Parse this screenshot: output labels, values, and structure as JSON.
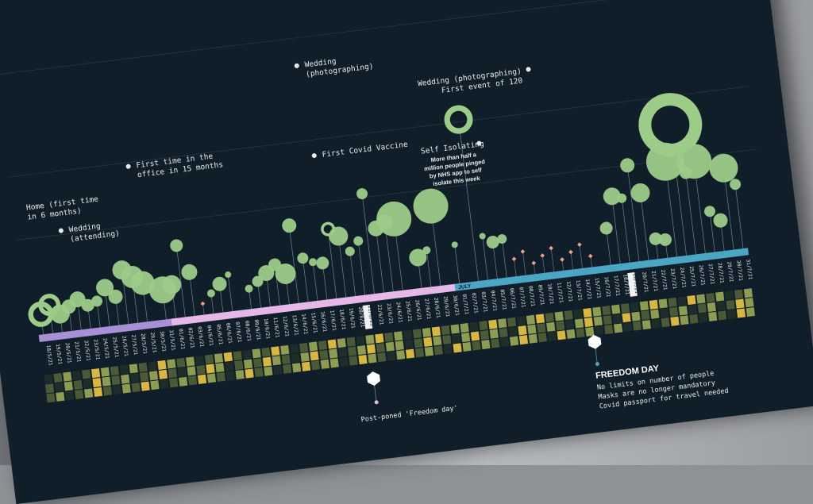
{
  "chart_data": {
    "type": "scatter",
    "title": "",
    "months": [
      {
        "label": "",
        "color": "#a98fd6"
      },
      {
        "label": "",
        "color": "#e6b8e8"
      },
      {
        "label": "JULY",
        "color": "#4ba6c3"
      }
    ],
    "dates": [
      "18/5/21",
      "19/5/21",
      "20/5/21",
      "21/5/21",
      "22/5/21",
      "23/5/21",
      "24/5/21",
      "25/5/21",
      "26/5/21",
      "27/5/21",
      "28/5/21",
      "29/5/21",
      "30/5/21",
      "31/5/21",
      "01/6/21",
      "02/6/21",
      "03/6/21",
      "04/6/21",
      "05/6/21",
      "06/6/21",
      "07/6/21",
      "08/6/21",
      "09/6/21",
      "10/6/21",
      "11/6/21",
      "12/6/21",
      "13/6/21",
      "14/6/21",
      "15/6/21",
      "16/6/21",
      "17/6/21",
      "18/6/21",
      "19/6/21",
      "20/6/21",
      "21/6/21",
      "22/6/21",
      "23/6/21",
      "24/6/21",
      "25/6/21",
      "26/6/21",
      "27/6/21",
      "28/6/21",
      "29/6/21",
      "30/6/21",
      "01/7/21",
      "02/7/21",
      "03/7/21",
      "04/7/21",
      "05/7/21",
      "06/7/21",
      "07/7/21",
      "08/7/21",
      "09/7/21",
      "10/7/21",
      "11/7/21",
      "12/7/21",
      "13/7/21",
      "14/7/21",
      "15/7/21",
      "16/7/21",
      "17/7/21",
      "18/7/21",
      "19/7/21",
      "20/7/21",
      "21/7/21",
      "22/7/21",
      "23/7/21",
      "24/7/21",
      "25/7/21",
      "26/7/21",
      "27/7/21",
      "28/7/21",
      "29/7/21",
      "30/7/21",
      "31/7/21"
    ],
    "highlighted_dates": [
      "21/6/21",
      "19/7/21"
    ],
    "bubbles": [
      {
        "d": 0,
        "h": 0.12,
        "r": 16,
        "ring": true
      },
      {
        "d": 1,
        "h": 0.2,
        "r": 14,
        "ring": true
      },
      {
        "d": 2,
        "h": 0.1,
        "r": 12
      },
      {
        "d": 3,
        "h": 0.16,
        "r": 9
      },
      {
        "d": 4,
        "h": 0.22,
        "r": 10
      },
      {
        "d": 5,
        "h": 0.15,
        "r": 8
      },
      {
        "d": 6,
        "h": 0.18,
        "r": 7
      },
      {
        "d": 7,
        "h": 0.3,
        "r": 11
      },
      {
        "d": 8,
        "h": 0.2,
        "r": 9
      },
      {
        "d": 9,
        "h": 0.45,
        "r": 12
      },
      {
        "d": 10,
        "h": 0.37,
        "r": 14
      },
      {
        "d": 11,
        "h": 0.3,
        "r": 15
      },
      {
        "d": 13,
        "h": 0.21,
        "r": 17
      },
      {
        "d": 14,
        "h": 0.25,
        "r": 12
      },
      {
        "d": 15,
        "h": 0.62,
        "r": 8
      },
      {
        "d": 16,
        "h": 0.35,
        "r": 10
      },
      {
        "d": 18,
        "h": 0.12,
        "r": 5
      },
      {
        "d": 19,
        "h": 0.2,
        "r": 9
      },
      {
        "d": 20,
        "h": 0.28,
        "r": 4
      },
      {
        "d": 22,
        "h": 0.12,
        "r": 5
      },
      {
        "d": 23,
        "h": 0.18,
        "r": 7
      },
      {
        "d": 24,
        "h": 0.25,
        "r": 10
      },
      {
        "d": 25,
        "h": 0.32,
        "r": 8
      },
      {
        "d": 26,
        "h": 0.22,
        "r": 13
      },
      {
        "d": 27,
        "h": 0.68,
        "r": 9
      },
      {
        "d": 28,
        "h": 0.35,
        "r": 7
      },
      {
        "d": 29,
        "h": 0.3,
        "r": 5
      },
      {
        "d": 30,
        "h": 0.28,
        "r": 8
      },
      {
        "d": 31,
        "h": 0.6,
        "r": 9,
        "ring": true
      },
      {
        "d": 32,
        "h": 0.52,
        "r": 12
      },
      {
        "d": 33,
        "h": 0.36,
        "r": 6
      },
      {
        "d": 34,
        "h": 0.45,
        "r": 6
      },
      {
        "d": 35,
        "h": 0.9,
        "r": 7
      },
      {
        "d": 36,
        "h": 0.55,
        "r": 10
      },
      {
        "d": 37,
        "h": 0.6,
        "r": 10
      },
      {
        "d": 38,
        "h": 0.62,
        "r": 22
      },
      {
        "d": 40,
        "h": 0.22,
        "r": 11
      },
      {
        "d": 41,
        "h": 0.28,
        "r": 5
      },
      {
        "d": 42,
        "h": 0.7,
        "r": 22
      },
      {
        "d": 44,
        "h": 0.3,
        "r": 4
      },
      {
        "d": 46,
        "h": 1.5,
        "r": 18,
        "ring": true
      },
      {
        "d": 47,
        "h": 0.35,
        "r": 4
      },
      {
        "d": 48,
        "h": 0.28,
        "r": 8
      },
      {
        "d": 49,
        "h": 0.3,
        "r": 6
      },
      {
        "d": 60,
        "h": 0.28,
        "r": 8
      },
      {
        "d": 61,
        "h": 0.58,
        "r": 11
      },
      {
        "d": 62,
        "h": 0.55,
        "r": 6
      },
      {
        "d": 63,
        "h": 0.86,
        "r": 9
      },
      {
        "d": 64,
        "h": 0.58,
        "r": 12
      },
      {
        "d": 65,
        "h": 0.12,
        "r": 8
      },
      {
        "d": 66,
        "h": 0.1,
        "r": 8
      },
      {
        "d": 67,
        "h": 0.85,
        "r": 24
      },
      {
        "d": 68,
        "h": 1.2,
        "r": 40,
        "ring": true
      },
      {
        "d": 69,
        "h": 0.72,
        "r": 8
      },
      {
        "d": 70,
        "h": 0.82,
        "r": 22
      },
      {
        "d": 71,
        "h": 0.32,
        "r": 7
      },
      {
        "d": 72,
        "h": 0.22,
        "r": 9
      },
      {
        "d": 73,
        "h": 0.72,
        "r": 18
      },
      {
        "d": 74,
        "h": 0.55,
        "r": 7
      }
    ],
    "small_markers": [
      {
        "d": 17
      },
      {
        "d": 50
      },
      {
        "d": 51
      },
      {
        "d": 52
      },
      {
        "d": 53
      },
      {
        "d": 54
      },
      {
        "d": 55
      },
      {
        "d": 56
      },
      {
        "d": 57
      },
      {
        "d": 58
      }
    ],
    "heatmap": {
      "rows": 3,
      "levels": [
        0,
        1,
        2,
        0,
        1,
        3,
        2,
        1,
        0,
        2,
        1,
        0,
        3,
        2,
        1,
        2,
        0,
        1,
        2,
        3,
        1,
        0,
        2,
        1,
        3,
        2,
        0,
        1,
        2,
        1,
        3,
        2,
        1,
        0,
        2,
        3,
        1,
        2,
        0,
        1,
        2,
        3,
        1,
        2,
        2,
        0,
        1,
        3,
        2,
        1,
        0,
        2,
        3,
        1,
        2,
        1,
        0,
        3,
        2,
        1,
        2,
        1,
        0,
        2,
        3,
        2,
        1,
        0,
        3,
        2,
        1,
        2,
        0,
        1,
        2
      ]
    },
    "annotations": [
      {
        "text": "Wedding",
        "text2": "(photographing)"
      },
      {
        "text": "Wedding (photographing)",
        "text2": "First event of 120"
      },
      {
        "text": "Self Isolating",
        "text2": ""
      },
      {
        "text": "First time in the",
        "text2": "office in 15 months"
      },
      {
        "text": "First Covid Vaccine",
        "text2": ""
      },
      {
        "text": "Home (first time",
        "text2": "in 6 months)"
      },
      {
        "text": "Wedding",
        "text2": "(attending)"
      }
    ],
    "self_isolating_note": [
      "More than half a",
      "million people pinged",
      "by NHS app to self",
      "isolate this week"
    ],
    "postponed_label": "Post-poned 'Freedom day'",
    "freedom": {
      "title": "FREEDOM DAY",
      "lines": [
        "No limits on number of people",
        "Masks are no longer mandatory",
        "Covid passport for travel needed"
      ]
    }
  },
  "colors": {
    "background": "#0f1e29",
    "bubble": "#9ccc88",
    "stem": "#6f8391",
    "marker": "#e9a08a",
    "heat": [
      "#1e2d2a",
      "#4a5a36",
      "#8e9c52",
      "#d9b63e"
    ]
  }
}
